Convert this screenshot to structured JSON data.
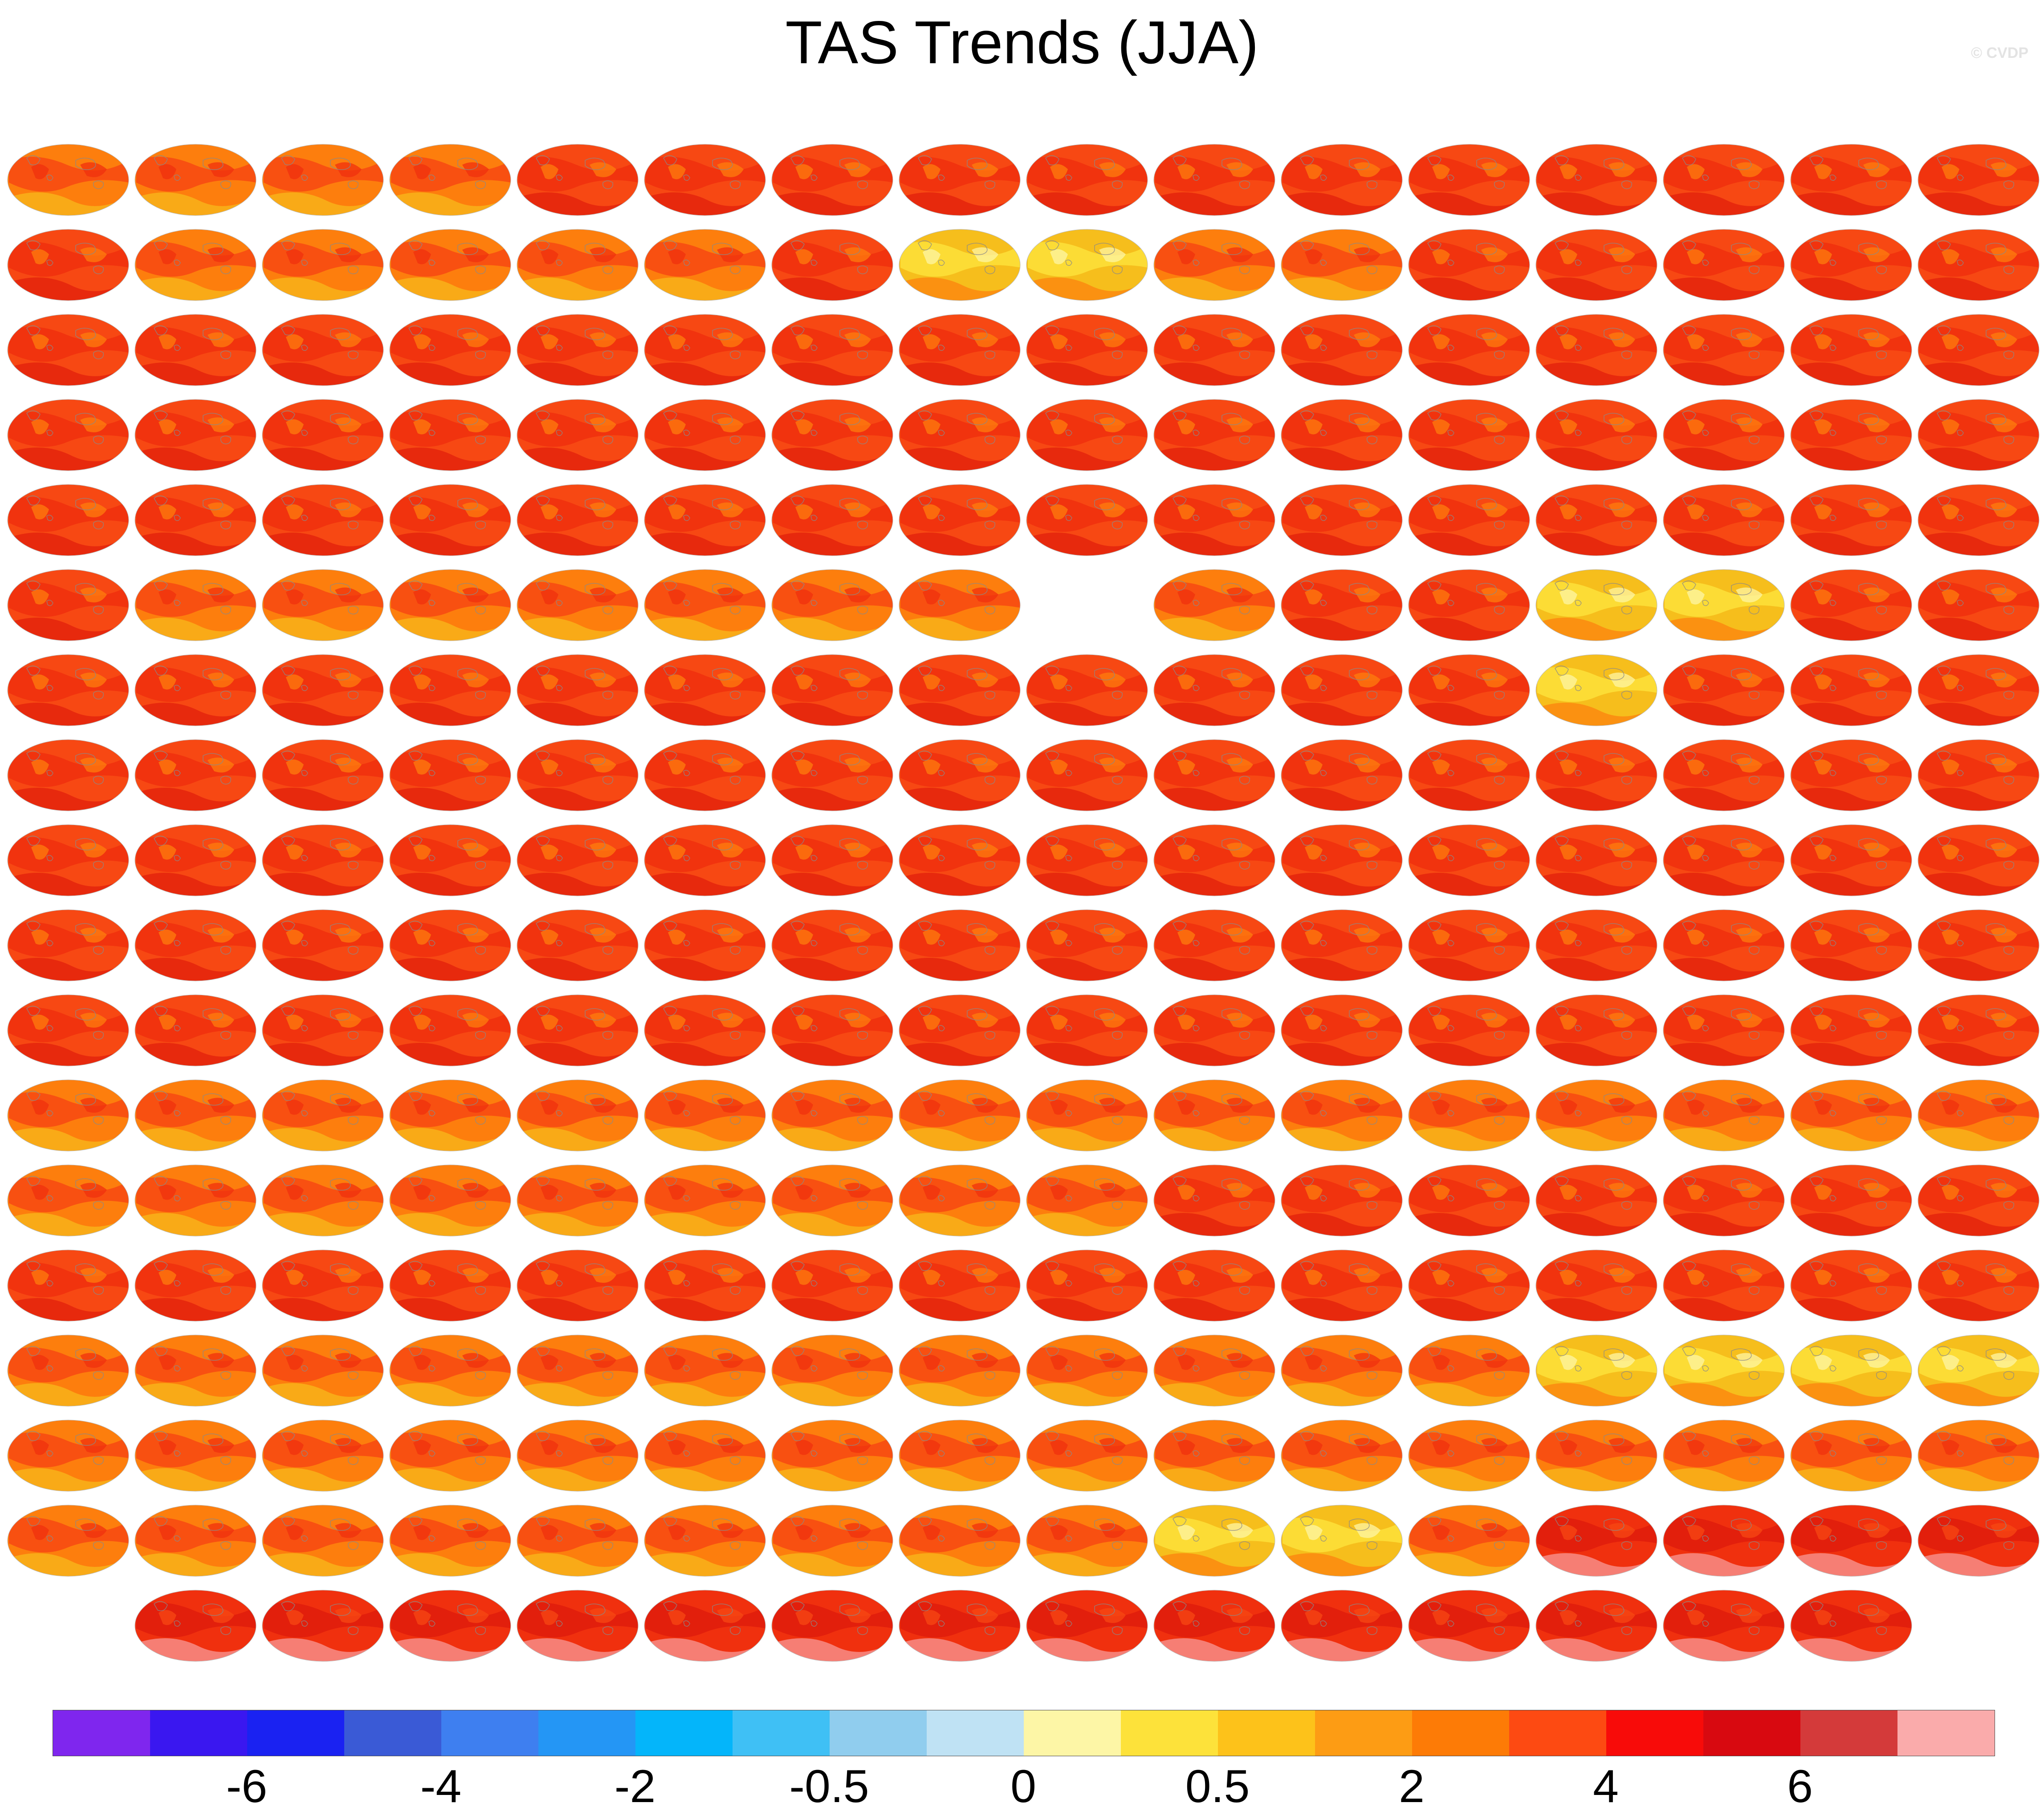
{
  "title": "TAS Trends (JJA)",
  "watermark": "© CVDP",
  "map_grid": {
    "rows": [
      16,
      16,
      16,
      16,
      16,
      16,
      16,
      16,
      16,
      16,
      16,
      16,
      16,
      16,
      16,
      16,
      16,
      14
    ],
    "skip": [
      [
        5,
        8
      ]
    ],
    "last_row_offset": 1,
    "palette": [
      "#f6be1c",
      "#fd7e0d",
      "#f74813",
      "#f0300e",
      "#df1c0c"
    ],
    "panel_styles": [
      "o",
      "o",
      "o",
      "o",
      "r",
      "r",
      "r",
      "r",
      "r",
      "r",
      "r",
      "r",
      "r",
      "r",
      "r",
      "r",
      "r",
      "o",
      "o",
      "o",
      "o",
      "o",
      "r",
      "y",
      "y",
      "o",
      "o",
      "r",
      "r",
      "r",
      "r",
      "r",
      "r",
      "r",
      "r",
      "r",
      "r",
      "r",
      "r",
      "r",
      "r",
      "r",
      "r",
      "r",
      "r",
      "r",
      "r",
      "r",
      "r",
      "r",
      "r",
      "r",
      "r",
      "r",
      "r",
      "r",
      "r",
      "r",
      "r",
      "r",
      "r",
      "r",
      "r",
      "r",
      "r",
      "r",
      "r",
      "r",
      "r",
      "r",
      "r",
      "r",
      "r",
      "r",
      "r",
      "r",
      "r",
      "r",
      "r",
      "r",
      "r",
      "o",
      "o",
      "o",
      "o",
      "o",
      "o",
      "o",
      "-",
      "o",
      "r",
      "r",
      "y",
      "y",
      "r",
      "r",
      "r",
      "r",
      "r",
      "r",
      "r",
      "r",
      "r",
      "r",
      "r",
      "r",
      "r",
      "r",
      "y",
      "r",
      "r",
      "r",
      "r",
      "r",
      "r",
      "r",
      "r",
      "r",
      "r",
      "r",
      "r",
      "r",
      "r",
      "r",
      "r",
      "r",
      "r",
      "r",
      "r",
      "r",
      "r",
      "r",
      "r",
      "r",
      "r",
      "r",
      "r",
      "r",
      "r",
      "r",
      "r",
      "r",
      "r",
      "r",
      "r",
      "r",
      "r",
      "r",
      "r",
      "r",
      "r",
      "r",
      "r",
      "r",
      "r",
      "r",
      "r",
      "r",
      "r",
      "r",
      "r",
      "r",
      "r",
      "r",
      "r",
      "r",
      "r",
      "r",
      "r",
      "r",
      "r",
      "r",
      "r",
      "r",
      "r",
      "r",
      "o",
      "o",
      "o",
      "o",
      "o",
      "o",
      "o",
      "o",
      "o",
      "o",
      "o",
      "o",
      "o",
      "o",
      "o",
      "o",
      "o",
      "o",
      "o",
      "o",
      "o",
      "o",
      "o",
      "o",
      "o",
      "r",
      "r",
      "r",
      "r",
      "r",
      "r",
      "r",
      "r",
      "r",
      "r",
      "r",
      "r",
      "r",
      "r",
      "r",
      "r",
      "r",
      "r",
      "r",
      "r",
      "r",
      "r",
      "r",
      "o",
      "o",
      "o",
      "o",
      "o",
      "o",
      "o",
      "o",
      "o",
      "o",
      "o",
      "o",
      "y",
      "y",
      "y",
      "y",
      "o",
      "o",
      "o",
      "o",
      "o",
      "o",
      "o",
      "o",
      "o",
      "o",
      "o",
      "o",
      "o",
      "o",
      "o",
      "o",
      "o",
      "o",
      "o",
      "o",
      "o",
      "o",
      "o",
      "o",
      "o",
      "y",
      "y",
      "o",
      "p",
      "p",
      "p",
      "p",
      "p",
      "p",
      "p",
      "p",
      "p",
      "p",
      "p",
      "p",
      "p",
      "p",
      "p",
      "p",
      "p",
      "p"
    ]
  },
  "colorbar": {
    "colors": [
      "#7f26ee",
      "#3a17f0",
      "#1a22f2",
      "#3a5ad6",
      "#3e7ff0",
      "#2496f5",
      "#04b5fa",
      "#3fc0f5",
      "#90cdee",
      "#bfe2f4",
      "#fdf6a6",
      "#fde23a",
      "#fdc21a",
      "#fd9c14",
      "#fd7b06",
      "#fd4a12",
      "#f80b09",
      "#d80910",
      "#d43a3a",
      "#faabab"
    ],
    "labels": [
      "-6",
      "-4",
      "-2",
      "-0.5",
      "0",
      "0.5",
      "2",
      "4",
      "6"
    ],
    "label_boundaries": [
      2,
      4,
      6,
      8,
      10,
      12,
      14,
      16,
      18
    ]
  }
}
